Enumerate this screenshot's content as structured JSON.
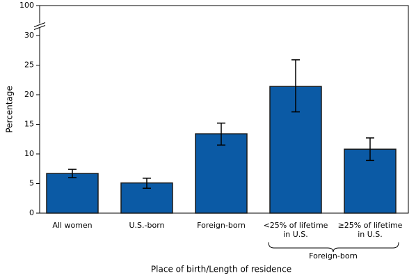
{
  "chart_data": {
    "type": "bar",
    "y_label": "Percentage",
    "x_label": "Place of birth/Length of residence",
    "categories": [
      [
        "All women"
      ],
      [
        "U.S.-born"
      ],
      [
        "Foreign-born"
      ],
      [
        "<25% of lifetime",
        "in U.S."
      ],
      [
        "≥25% of lifetime",
        "in U.S."
      ]
    ],
    "group_label": "Foreign-born",
    "series": [
      {
        "color": "#0b5aa5",
        "values": [
          6.7,
          5.1,
          13.4,
          21.4,
          10.8
        ],
        "ci_low": [
          6.0,
          4.2,
          11.5,
          17.1,
          8.9
        ],
        "ci_high": [
          7.4,
          5.9,
          15.2,
          25.9,
          12.7
        ]
      }
    ],
    "ylim": [
      0,
      100
    ],
    "yticks": [
      0,
      5,
      10,
      15,
      20,
      25,
      30,
      100
    ],
    "axis_break": [
      30,
      100
    ]
  }
}
